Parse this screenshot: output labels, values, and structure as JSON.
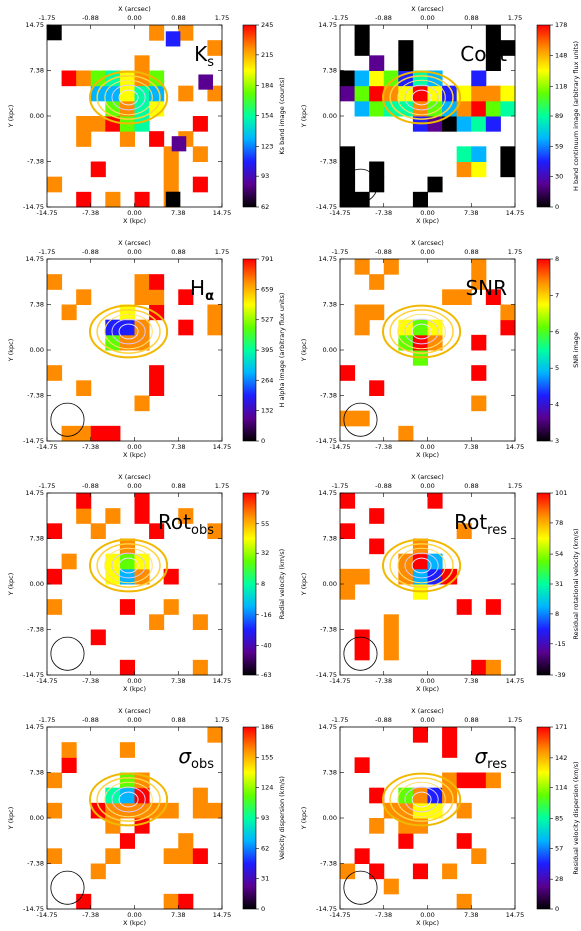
{
  "chart_data": {
    "type": "image-grid",
    "axes": {
      "xlabel": "X (kpc)",
      "ylabel": "Y (kpc)",
      "x2label": "X (arcsec)",
      "xlim": [
        -14.75,
        14.75
      ],
      "xticks": [
        -14.75,
        -7.38,
        {
          "value": 0,
          "label": "0.00"
        },
        7.38,
        14.75
      ],
      "ylim": [
        -14.75,
        14.75
      ],
      "yticks": [
        -14.75,
        -7.38,
        {
          "value": 0,
          "label": "0.00"
        },
        7.38,
        14.75
      ],
      "x2lim": [
        -1.75,
        1.75
      ],
      "x2ticks": [
        -1.75,
        -0.88,
        {
          "value": 0,
          "label": "0.00"
        },
        0.88,
        1.75
      ]
    },
    "colormap": [
      "#000000",
      "#5a0090",
      "#1e1eff",
      "#00b4ff",
      "#00ffa0",
      "#60ff00",
      "#ffff00",
      "#ff8c00",
      "#ff0000"
    ],
    "panels": [
      {
        "label": "K",
        "label_sub": "s",
        "cbar_label": "Ks band image (counts)",
        "clim": [
          62,
          245
        ],
        "cticks": [
          62,
          93,
          123,
          154,
          184,
          215,
          245
        ]
      },
      {
        "label": "Cont",
        "cbar_label": "H band continuum image (arbitrary flux units)",
        "clim": [
          0,
          178
        ],
        "cticks": [
          0,
          30,
          59,
          89,
          118,
          148,
          178
        ]
      },
      {
        "label": "H",
        "label_sub": "α",
        "cbar_label": "H alpha image (arbitrary flux units)",
        "clim": [
          0,
          791
        ],
        "cticks": [
          0,
          132,
          264,
          395,
          527,
          659,
          791
        ]
      },
      {
        "label": "SNR",
        "cbar_label": "SNR image",
        "clim": [
          3,
          8
        ],
        "cticks": [
          3,
          4,
          5,
          6,
          7,
          8
        ]
      },
      {
        "label": "Rot",
        "label_sub": "obs",
        "cbar_label": "Radial velocity (km/s)",
        "clim": [
          -63,
          79
        ],
        "cticks": [
          -63,
          -40,
          -16,
          8,
          32,
          55,
          79
        ]
      },
      {
        "label": "Rot",
        "label_sub": "res",
        "cbar_label": "Residual rotational velocity (km/s)",
        "clim": [
          -39,
          101
        ],
        "cticks": [
          -39,
          -15,
          8,
          31,
          54,
          78,
          101
        ]
      },
      {
        "label": "σ",
        "label_sub": "obs",
        "cbar_label": "Velocity dispersion (km/s)",
        "clim": [
          0,
          186
        ],
        "cticks": [
          0,
          31,
          62,
          93,
          124,
          155,
          186
        ]
      },
      {
        "label": "σ",
        "label_sub": "res",
        "cbar_label": "Residual velocity dispersion (km/s)",
        "clim": [
          0,
          171
        ],
        "cticks": [
          0,
          28,
          57,
          85,
          114,
          142,
          171
        ]
      }
    ]
  }
}
